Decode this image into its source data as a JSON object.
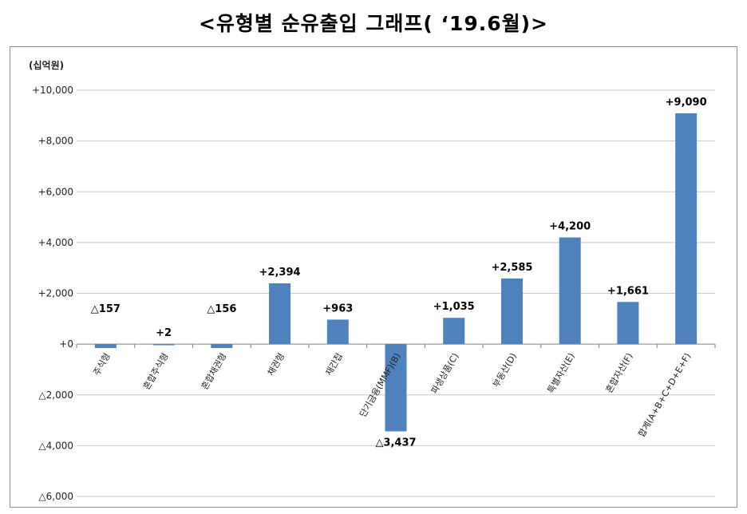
{
  "title": "<유형별 순유출입 그래프( ‘19.6월)>",
  "chart_data": {
    "type": "bar",
    "title": "<유형별 순유출입 그래프( ‘19.6월)>",
    "unit_label": "(십억원)",
    "xlabel": "",
    "ylabel": "",
    "ylim": [
      -6000,
      10000
    ],
    "yticks": [
      10000,
      8000,
      6000,
      4000,
      2000,
      0,
      -2000,
      -4000,
      -6000
    ],
    "ytick_labels": [
      "+10,000",
      "+8,000",
      "+6,000",
      "+4,000",
      "+2,000",
      "+0",
      "△2,000",
      "△4,000",
      "△6,000"
    ],
    "grid": true,
    "bar_color": "#4f81bd",
    "categories": [
      "주식형",
      "혼합주식형",
      "혼합채권형",
      "채권형",
      "재간접",
      "단기금융(MMF)(B)",
      "파생상품(C)",
      "부동산(D)",
      "특별자산(E)",
      "혼합자산(F)",
      "합계(A+B+C+D+E+F)"
    ],
    "values": [
      -157,
      2,
      -156,
      2394,
      963,
      -3437,
      1035,
      2585,
      4200,
      1661,
      9090
    ],
    "data_labels": [
      "△157",
      "+2",
      "△156",
      "+2,394",
      "+963",
      "△3,437",
      "+1,035",
      "+2,585",
      "+4,200",
      "+1,661",
      "+9,090"
    ]
  }
}
